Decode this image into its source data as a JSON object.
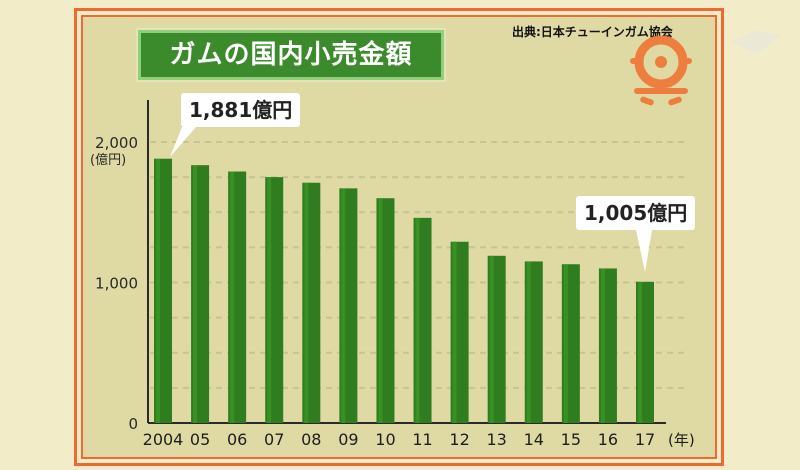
{
  "title": "ガムの国内小売金額",
  "source": "出典:日本チューインガム協会",
  "colors": {
    "bar": "#2f7d1f",
    "bar_highlight": "#3d9a2a",
    "title_bg": "#3b8a2b",
    "frame": "#ef6a33",
    "panel": "#dfd9a4"
  },
  "callouts": {
    "first": "1,881億円",
    "last": "1,005億円"
  },
  "chart_data": {
    "type": "bar",
    "categories": [
      "2004",
      "05",
      "06",
      "07",
      "08",
      "09",
      "10",
      "11",
      "12",
      "13",
      "14",
      "15",
      "16",
      "17"
    ],
    "values": [
      1881,
      1835,
      1790,
      1750,
      1710,
      1670,
      1600,
      1460,
      1290,
      1190,
      1150,
      1130,
      1100,
      1005
    ],
    "ylim": [
      0,
      2000
    ],
    "yticks": [
      {
        "value": 0,
        "label": "0"
      },
      {
        "value": 1000,
        "label": "1,000"
      },
      {
        "value": 2000,
        "label": "2,000"
      }
    ],
    "ylabel": "(億円)",
    "xlabel": "(年)",
    "grid": true
  }
}
